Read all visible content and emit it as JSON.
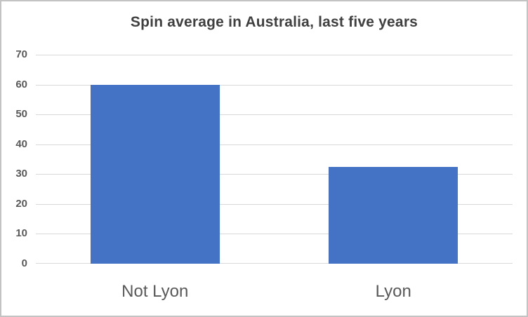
{
  "chart_data": {
    "type": "bar",
    "title": "Spin average in Australia, last five years",
    "categories": [
      "Not Lyon",
      "Lyon"
    ],
    "values": [
      60,
      32.5
    ],
    "xlabel": "",
    "ylabel": "",
    "ylim": [
      0,
      70
    ],
    "yticks": [
      0,
      10,
      20,
      30,
      40,
      50,
      60,
      70
    ],
    "grid": true,
    "legend": "none",
    "colors": {
      "bar": "#4472c4",
      "gridline": "#d9d9d9",
      "axis_line": "#d9d9d9",
      "tick_label": "#595959",
      "category_label": "#595959",
      "title": "#404040",
      "background": "#ffffff",
      "frame_border": "#c3c3c3"
    }
  }
}
